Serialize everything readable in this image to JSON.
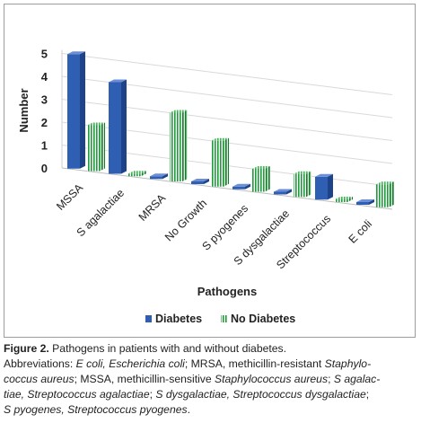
{
  "chart_data": {
    "type": "bar",
    "xlabel": "Pathogens",
    "ylabel": "Number",
    "ylim": [
      0,
      5
    ],
    "yticks": [
      "0",
      "1",
      "2",
      "3",
      "4",
      "5"
    ],
    "categories": [
      "MSSA",
      "S agalactiae",
      "MRSA",
      "No Growth",
      "S pyogenes",
      "S dysgalactiae",
      "Streptococcus",
      "E coli"
    ],
    "series": [
      {
        "name": "Diabetes",
        "values": [
          5,
          4,
          0,
          0,
          0,
          0,
          1,
          0
        ],
        "color": "#2f5fb3"
      },
      {
        "name": "No Diabetes",
        "values": [
          2,
          0,
          3,
          2,
          1,
          1,
          0,
          1
        ],
        "color": "#28a745"
      }
    ],
    "grid": true,
    "legend_position": "bottom"
  },
  "caption": {
    "title": "Figure 2.",
    "title_rest": " Pathogens in patients with and without diabetes.",
    "line1_parts": [
      {
        "t": "Abbreviations: ",
        "i": false
      },
      {
        "t": "E coli, Escherichia coli",
        "i": true
      },
      {
        "t": "; MRSA, methicillin-resistant ",
        "i": false
      },
      {
        "t": "Staphylo-",
        "i": true
      }
    ],
    "line2_parts": [
      {
        "t": "coccus aureus",
        "i": true
      },
      {
        "t": "; MSSA, methicillin-sensitive ",
        "i": false
      },
      {
        "t": "Staphylococcus aureus",
        "i": true
      },
      {
        "t": "; ",
        "i": false
      },
      {
        "t": "S agalac-",
        "i": true
      }
    ],
    "line3_parts": [
      {
        "t": "tiae, Streptococcus agalactiae",
        "i": true
      },
      {
        "t": "; ",
        "i": false
      },
      {
        "t": "S dysgalactiae, Streptococcus dysgalactiae",
        "i": true
      },
      {
        "t": ";",
        "i": false
      }
    ],
    "line4_parts": [
      {
        "t": "S pyogenes, Streptococcus pyogenes",
        "i": true
      },
      {
        "t": ".",
        "i": false
      }
    ]
  }
}
